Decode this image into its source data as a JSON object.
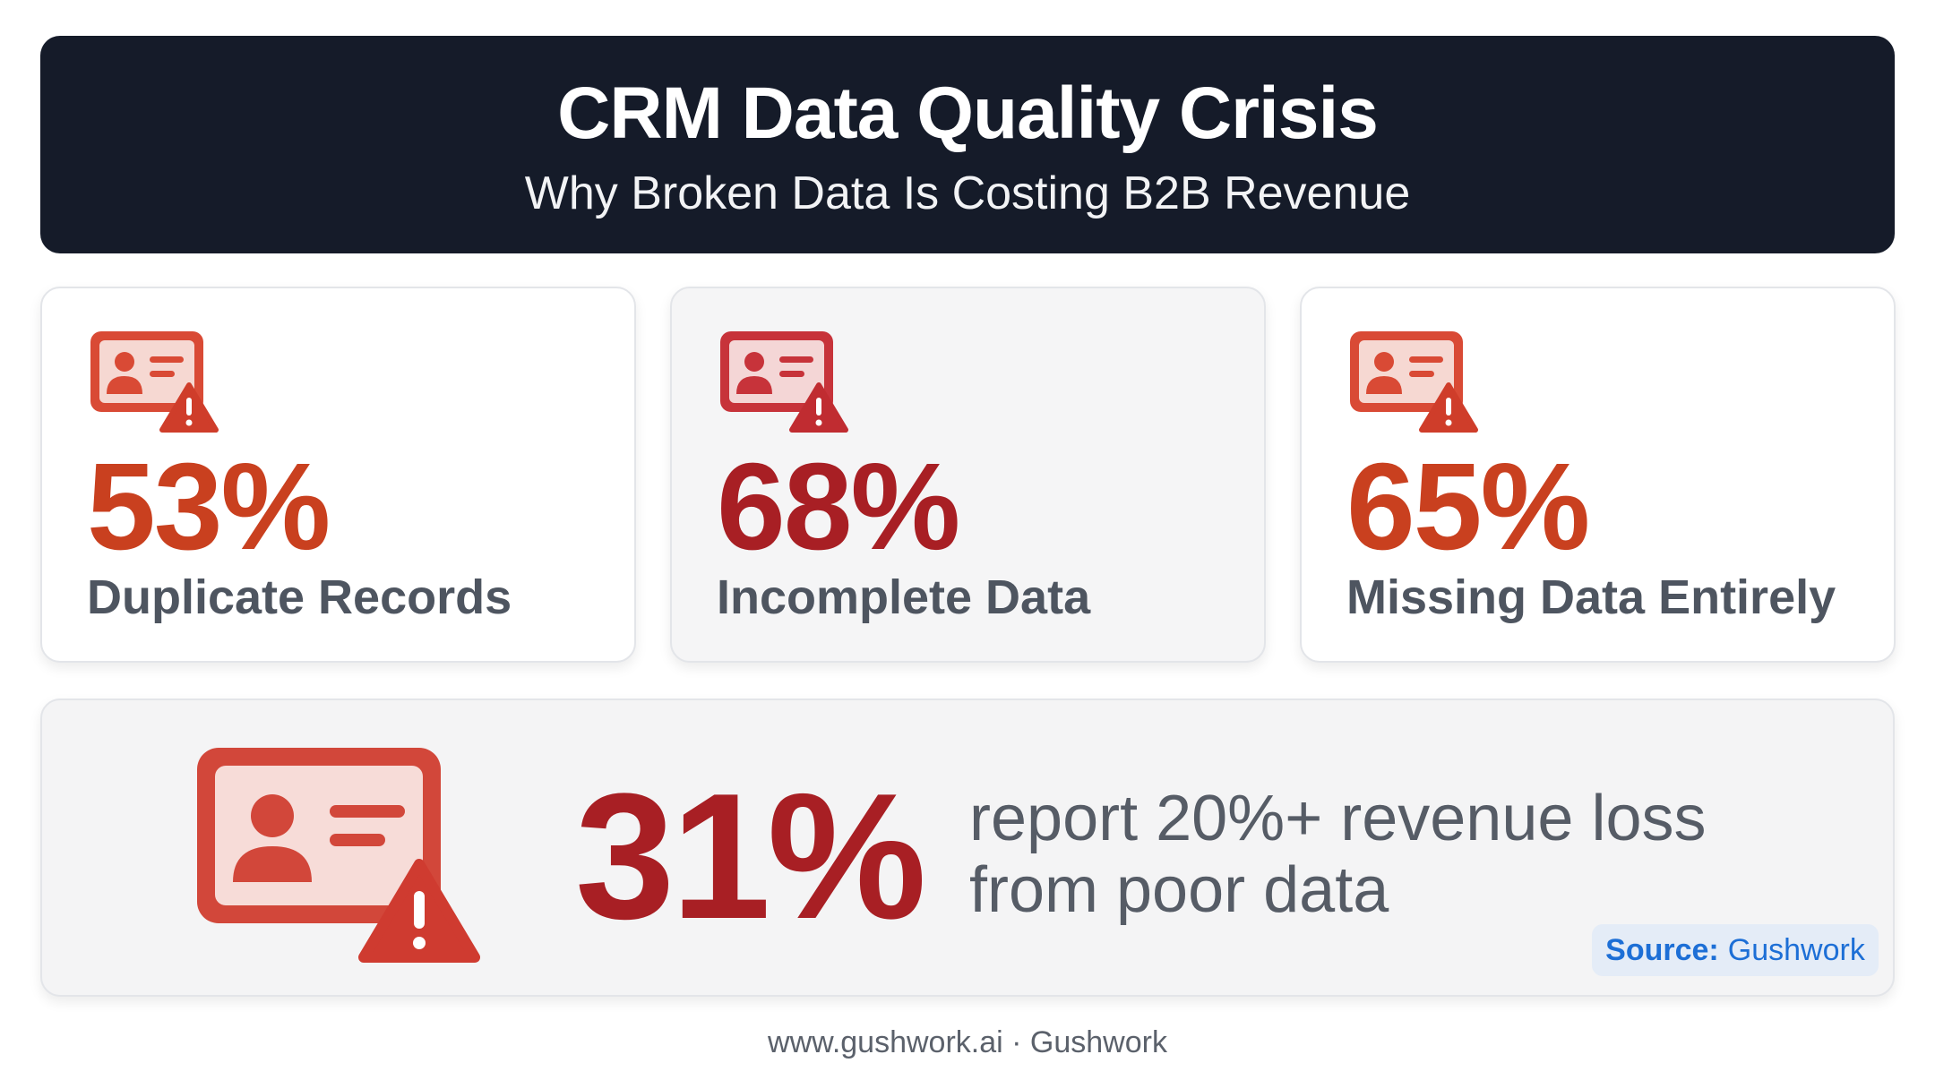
{
  "header": {
    "title": "CRM Data Quality Crisis",
    "subtitle": "Why Broken Data Is Costing B2B Revenue"
  },
  "stats": [
    {
      "value": "53%",
      "label": "Duplicate Records",
      "color": "#c9401f",
      "icon": "contact-card-warning-icon"
    },
    {
      "value": "68%",
      "label": "Incomplete Data",
      "color": "#a81f24",
      "icon": "contact-card-warning-icon"
    },
    {
      "value": "65%",
      "label": "Missing Data Entirely",
      "color": "#c9401f",
      "icon": "contact-card-warning-icon"
    }
  ],
  "highlight": {
    "value": "31%",
    "line1": "report 20%+ revenue loss",
    "line2": "from poor data",
    "color": "#a81f24",
    "icon": "contact-card-warning-icon"
  },
  "source": {
    "label": "Source:",
    "value": "Gushwork"
  },
  "footer": {
    "text": "www.gushwork.ai · Gushwork"
  },
  "colors": {
    "header_bg": "#151b29",
    "accent_orange": "#c9401f",
    "accent_red": "#a81f24",
    "icon_red": "#d94a35"
  }
}
